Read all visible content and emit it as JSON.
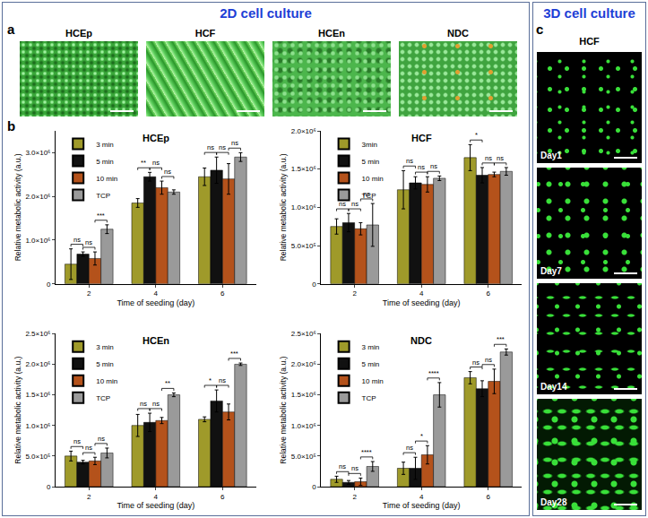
{
  "headings": [
    "2D cell culture",
    "3D cell culture"
  ],
  "panel_labels": [
    "a",
    "b",
    "c"
  ],
  "panel_a": {
    "labels": [
      "HCEp",
      "HCF",
      "HCEn",
      "NDC"
    ]
  },
  "panel_c": {
    "title": "HCF",
    "labels": [
      "Day1",
      "Day7",
      "Day14",
      "Day28"
    ]
  },
  "chart_data": [
    {
      "type": "bar",
      "title": "HCEp",
      "x_label": "Time of seeding (day)",
      "y_label": "Relative metabolic activity (a.u.)",
      "categories": [
        "2",
        "4",
        "6"
      ],
      "legend": "top-left",
      "grid": false,
      "ylim": [
        0,
        3500000
      ],
      "yticks": [
        0,
        {
          "value": 1000000,
          "label": "1.0×10⁶"
        },
        {
          "value": 2000000,
          "label": "2.0×10⁶"
        },
        {
          "value": 3000000,
          "label": "3.0×10⁶"
        }
      ],
      "series": [
        {
          "name": "3 min",
          "color": "#9f9a2a",
          "values": [
            450000,
            1850000,
            2450000
          ],
          "errors": [
            350000,
            100000,
            200000
          ]
        },
        {
          "name": "5 min",
          "color": "#111111",
          "values": [
            680000,
            2450000,
            2600000
          ],
          "errors": [
            50000,
            100000,
            300000
          ]
        },
        {
          "name": "10 min",
          "color": "#b4521b",
          "values": [
            580000,
            2200000,
            2400000
          ],
          "errors": [
            150000,
            150000,
            350000
          ]
        },
        {
          "name": "TCP",
          "color": "#9a9a9a",
          "values": [
            1250000,
            2100000,
            2900000
          ],
          "errors": [
            100000,
            50000,
            100000
          ]
        }
      ],
      "comparisons": [
        {
          "category": "2",
          "from": "3 min",
          "to": "5 min",
          "label": "ns"
        },
        {
          "category": "2",
          "from": "5 min",
          "to": "10 min",
          "label": "ns"
        },
        {
          "category": "2",
          "from": "10 min",
          "to": "TCP",
          "label": "***"
        },
        {
          "category": "4",
          "from": "3 min",
          "to": "5 min",
          "label": "**"
        },
        {
          "category": "4",
          "from": "5 min",
          "to": "10 min",
          "label": "ns"
        },
        {
          "category": "4",
          "from": "10 min",
          "to": "TCP",
          "label": "ns"
        },
        {
          "category": "6",
          "from": "3 min",
          "to": "5 min",
          "label": "ns"
        },
        {
          "category": "6",
          "from": "5 min",
          "to": "10 min",
          "label": "ns"
        },
        {
          "category": "6",
          "from": "10 min",
          "to": "TCP",
          "label": "ns"
        }
      ]
    },
    {
      "type": "bar",
      "title": "HCF",
      "x_label": "Time of seeding (day)",
      "y_label": "Relative metabolic activity (a.u.)",
      "categories": [
        "2",
        "4",
        "6"
      ],
      "legend": "top-left",
      "grid": false,
      "ylim": [
        0,
        2000000
      ],
      "yticks": [
        0,
        {
          "value": 500000,
          "label": "5.0×10⁵"
        },
        {
          "value": 1000000,
          "label": "1.0×10⁶"
        },
        {
          "value": 1500000,
          "label": "1.5×10⁶"
        },
        {
          "value": 2000000,
          "label": "2.0×10⁶"
        }
      ],
      "series": [
        {
          "name": "3min",
          "color": "#9f9a2a",
          "values": [
            750000,
            1230000,
            1650000
          ],
          "errors": [
            100000,
            250000,
            170000
          ]
        },
        {
          "name": "5 min",
          "color": "#111111",
          "values": [
            800000,
            1320000,
            1420000
          ],
          "errors": [
            120000,
            80000,
            100000
          ]
        },
        {
          "name": "10 min",
          "color": "#b4521b",
          "values": [
            720000,
            1300000,
            1430000
          ],
          "errors": [
            80000,
            100000,
            30000
          ]
        },
        {
          "name": "TCP",
          "color": "#9a9a9a",
          "values": [
            770000,
            1380000,
            1470000
          ],
          "errors": [
            280000,
            30000,
            50000
          ]
        }
      ],
      "comparisons": [
        {
          "category": "2",
          "from": "3min",
          "to": "5 min",
          "label": "ns"
        },
        {
          "category": "2",
          "from": "5 min",
          "to": "10 min",
          "label": "ns"
        },
        {
          "category": "2",
          "from": "10 min",
          "to": "TCP",
          "label": "ns"
        },
        {
          "category": "4",
          "from": "3min",
          "to": "5 min",
          "label": "ns"
        },
        {
          "category": "4",
          "from": "5 min",
          "to": "10 min",
          "label": "ns"
        },
        {
          "category": "4",
          "from": "10 min",
          "to": "TCP",
          "label": "ns"
        },
        {
          "category": "6",
          "from": "3min",
          "to": "5 min",
          "label": "*"
        },
        {
          "category": "6",
          "from": "5 min",
          "to": "10 min",
          "label": "ns"
        },
        {
          "category": "6",
          "from": "10 min",
          "to": "TCP",
          "label": "ns"
        }
      ]
    },
    {
      "type": "bar",
      "title": "HCEn",
      "x_label": "Time of seeding (day)",
      "y_label": "Relative metabolic activity (a.u.)",
      "categories": [
        "2",
        "4",
        "6"
      ],
      "legend": "top-left",
      "grid": false,
      "ylim": [
        0,
        2500000
      ],
      "yticks": [
        0,
        {
          "value": 500000,
          "label": "5.0×10⁵"
        },
        {
          "value": 1000000,
          "label": "1.0×10⁶"
        },
        {
          "value": 1500000,
          "label": "1.5×10⁶"
        },
        {
          "value": 2000000,
          "label": "2.0×10⁶"
        },
        {
          "value": 2500000,
          "label": "2.5×10⁶"
        }
      ],
      "series": [
        {
          "name": "3 min",
          "color": "#9f9a2a",
          "values": [
            500000,
            1000000,
            1100000
          ],
          "errors": [
            80000,
            180000,
            40000
          ]
        },
        {
          "name": "5 min",
          "color": "#111111",
          "values": [
            400000,
            1050000,
            1400000
          ],
          "errors": [
            30000,
            150000,
            180000
          ]
        },
        {
          "name": "10 min",
          "color": "#b4521b",
          "values": [
            420000,
            1080000,
            1220000
          ],
          "errors": [
            60000,
            50000,
            130000
          ]
        },
        {
          "name": "TCP",
          "color": "#9a9a9a",
          "values": [
            550000,
            1500000,
            2000000
          ],
          "errors": [
            80000,
            30000,
            20000
          ]
        }
      ],
      "comparisons": [
        {
          "category": "2",
          "from": "3 min",
          "to": "5 min",
          "label": "ns"
        },
        {
          "category": "2",
          "from": "5 min",
          "to": "10 min",
          "label": "ns"
        },
        {
          "category": "2",
          "from": "10 min",
          "to": "TCP",
          "label": "ns"
        },
        {
          "category": "4",
          "from": "3 min",
          "to": "5 min",
          "label": "ns"
        },
        {
          "category": "4",
          "from": "5 min",
          "to": "10 min",
          "label": "ns"
        },
        {
          "category": "4",
          "from": "10 min",
          "to": "TCP",
          "label": "**"
        },
        {
          "category": "6",
          "from": "3 min",
          "to": "5 min",
          "label": "*"
        },
        {
          "category": "6",
          "from": "5 min",
          "to": "10 min",
          "label": "ns"
        },
        {
          "category": "6",
          "from": "10 min",
          "to": "TCP",
          "label": "***"
        }
      ]
    },
    {
      "type": "bar",
      "title": "NDC",
      "x_label": "Time of seeding (day)",
      "y_label": "Relative metabolic activity (a.u.)",
      "categories": [
        "2",
        "4",
        "6"
      ],
      "legend": "top-left",
      "grid": false,
      "ylim": [
        0,
        2500000
      ],
      "yticks": [
        0,
        {
          "value": 500000,
          "label": "5.0×10⁵"
        },
        {
          "value": 1000000,
          "label": "1.0×10⁶"
        },
        {
          "value": 1500000,
          "label": "1.5×10⁶"
        },
        {
          "value": 2000000,
          "label": "2.0×10⁶"
        },
        {
          "value": 2500000,
          "label": "2.5×10⁶"
        }
      ],
      "series": [
        {
          "name": "3 min",
          "color": "#9f9a2a",
          "values": [
            120000,
            300000,
            1780000
          ],
          "errors": [
            50000,
            100000,
            100000
          ]
        },
        {
          "name": "5 min",
          "color": "#111111",
          "values": [
            70000,
            300000,
            1600000
          ],
          "errors": [
            30000,
            180000,
            130000
          ]
        },
        {
          "name": "10 min",
          "color": "#b4521b",
          "values": [
            80000,
            520000,
            1720000
          ],
          "errors": [
            60000,
            150000,
            200000
          ]
        },
        {
          "name": "TCP",
          "color": "#9a9a9a",
          "values": [
            330000,
            1500000,
            2200000
          ],
          "errors": [
            80000,
            200000,
            50000
          ]
        }
      ],
      "comparisons": [
        {
          "category": "2",
          "from": "3 min",
          "to": "5 min",
          "label": "ns"
        },
        {
          "category": "2",
          "from": "5 min",
          "to": "10 min",
          "label": "ns"
        },
        {
          "category": "2",
          "from": "10 min",
          "to": "TCP",
          "label": "****"
        },
        {
          "category": "4",
          "from": "3 min",
          "to": "5 min",
          "label": "ns"
        },
        {
          "category": "4",
          "from": "5 min",
          "to": "10 min",
          "label": "*"
        },
        {
          "category": "4",
          "from": "10 min",
          "to": "TCP",
          "label": "****"
        },
        {
          "category": "6",
          "from": "3 min",
          "to": "5 min",
          "label": "ns"
        },
        {
          "category": "6",
          "from": "5 min",
          "to": "10 min",
          "label": "ns"
        },
        {
          "category": "6",
          "from": "10 min",
          "to": "TCP",
          "label": "***"
        }
      ]
    }
  ]
}
